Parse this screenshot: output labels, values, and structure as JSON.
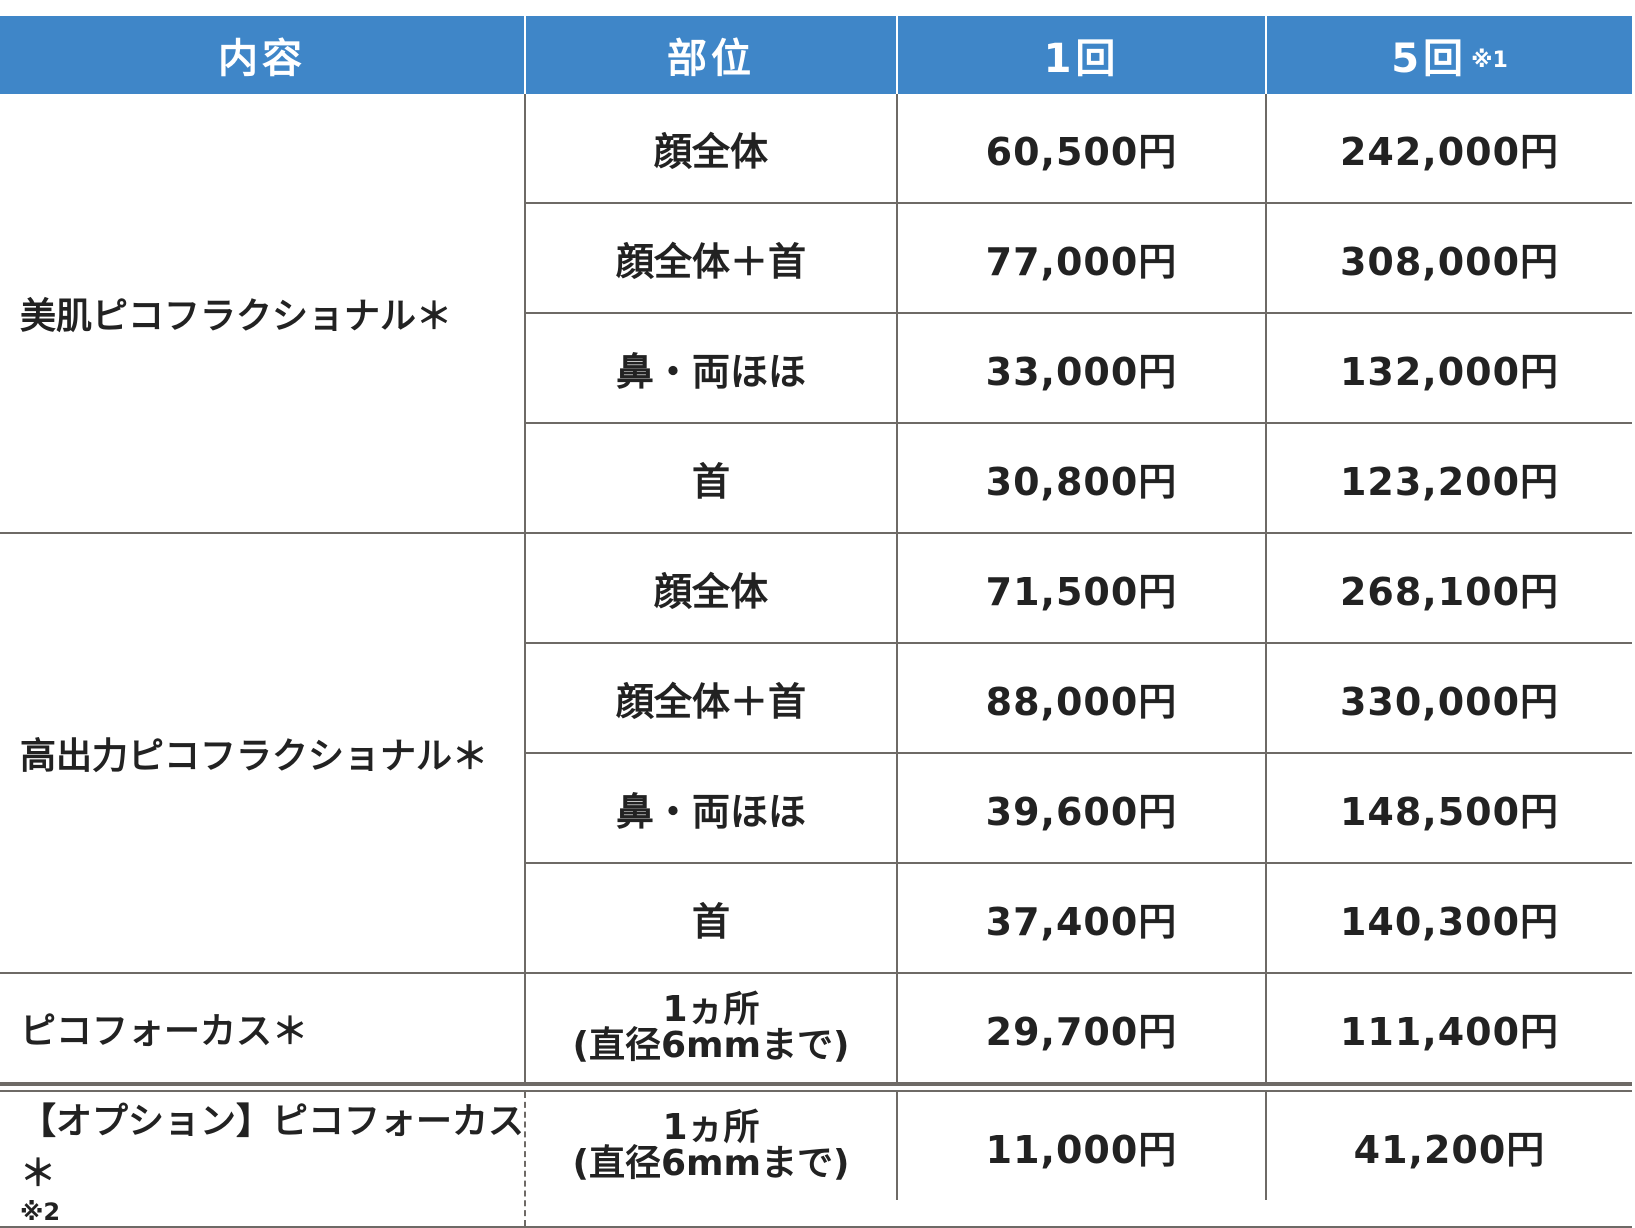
{
  "header": {
    "col1": "内容",
    "col2": "部位",
    "col3": "1回",
    "col4": "5回",
    "col4_note": "※1"
  },
  "groups": [
    {
      "label": "美肌ピコフラクショナル＊",
      "rows": [
        {
          "part": "顔全体",
          "once": "60,500円",
          "five": "242,000円"
        },
        {
          "part": "顔全体＋首",
          "once": "77,000円",
          "five": "308,000円"
        },
        {
          "part": "鼻・両ほほ",
          "once": "33,000円",
          "five": "132,000円"
        },
        {
          "part": "首",
          "once": "30,800円",
          "five": "123,200円"
        }
      ]
    },
    {
      "label": "高出力ピコフラクショナル＊",
      "rows": [
        {
          "part": "顔全体",
          "once": "71,500円",
          "five": "268,100円"
        },
        {
          "part": "顔全体＋首",
          "once": "88,000円",
          "five": "330,000円"
        },
        {
          "part": "鼻・両ほほ",
          "once": "39,600円",
          "five": "148,500円"
        },
        {
          "part": "首",
          "once": "37,400円",
          "five": "140,300円"
        }
      ]
    },
    {
      "label": "ピコフォーカス＊",
      "rows": [
        {
          "part_line1": "1ヵ所",
          "part_line2": "(直径6mmまで)",
          "once": "29,700円",
          "five": "111,400円"
        }
      ]
    },
    {
      "label": "【オプション】ピコフォーカス＊",
      "note": "※2",
      "rows": [
        {
          "part_line1": "1ヵ所",
          "part_line2": "(直径6mmまで)",
          "once": "11,000円",
          "five": "41,200円"
        }
      ]
    }
  ]
}
